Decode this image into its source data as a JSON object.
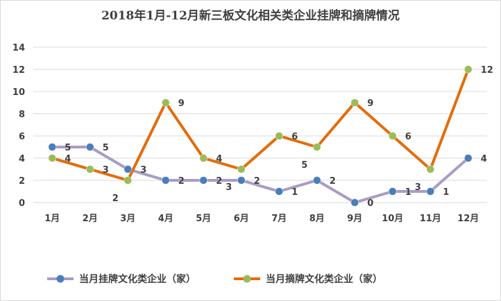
{
  "chart_data": {
    "type": "line",
    "title": "2018年1月-12月新三板文化相关类企业挂牌和摘牌情况",
    "categories": [
      "1月",
      "2月",
      "3月",
      "4月",
      "5月",
      "6月",
      "7月",
      "8月",
      "9月",
      "10月",
      "11月",
      "12月"
    ],
    "ylim": [
      0,
      14
    ],
    "yticks": [
      0,
      2,
      4,
      6,
      8,
      10,
      12,
      14
    ],
    "grid": true,
    "legend_position": "bottom",
    "series": [
      {
        "name": "当月挂牌文化类企业（家）",
        "values": [
          5,
          5,
          3,
          2,
          2,
          2,
          1,
          2,
          0,
          1,
          1,
          4
        ],
        "line_color": "#a99bc6",
        "marker_color": "#4a7ebb"
      },
      {
        "name": "当月摘牌文化类企业（家）",
        "values": [
          4,
          3,
          2,
          9,
          4,
          3,
          6,
          5,
          9,
          6,
          3,
          12
        ],
        "line_color": "#e46c0a",
        "marker_color": "#9bbb59"
      }
    ]
  }
}
